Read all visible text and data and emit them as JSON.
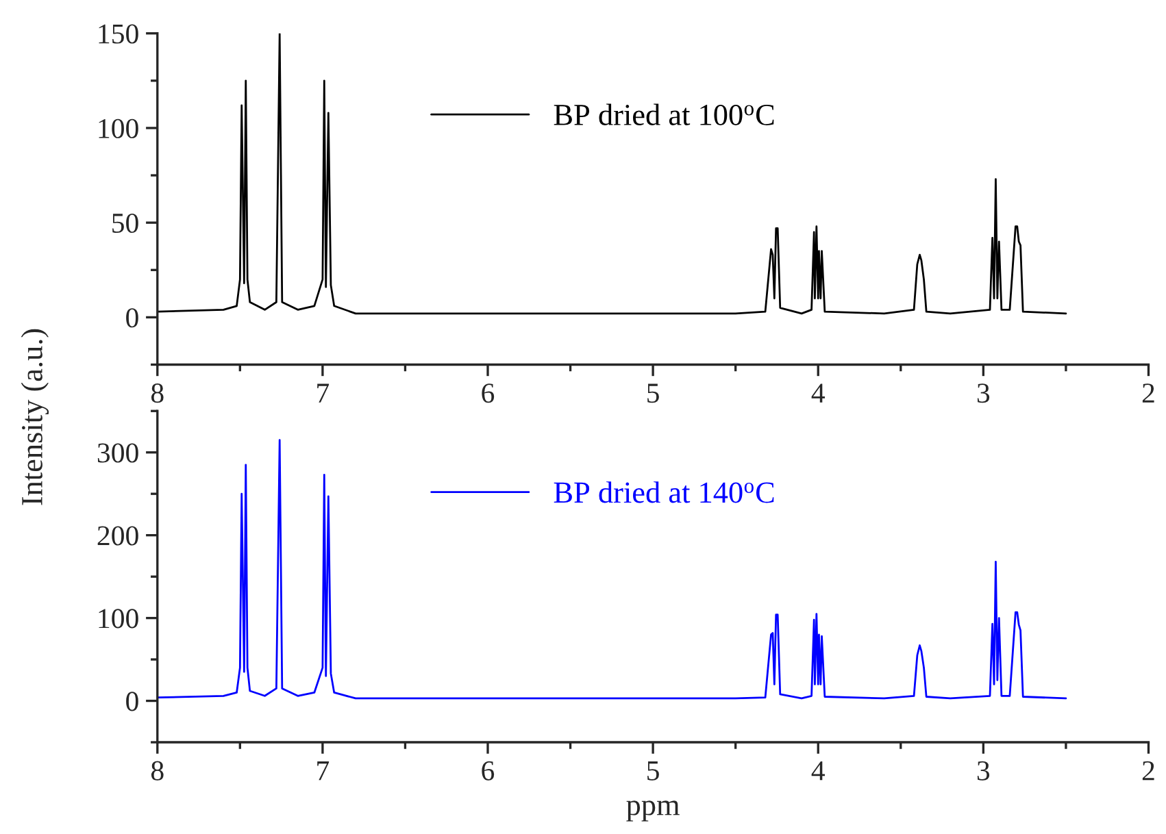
{
  "chart_data": [
    {
      "type": "line",
      "ylabel": "Intensity (a.u.)",
      "xlim": [
        8,
        2
      ],
      "ylim": [
        -25,
        150
      ],
      "xticks": [
        8,
        {
          "value": 7.5,
          "label": null
        },
        7,
        {
          "value": 6.5,
          "label": null
        },
        6,
        {
          "value": 5.5,
          "label": null
        },
        5,
        {
          "value": 4.5,
          "label": null
        },
        4,
        {
          "value": 3.5,
          "label": null
        },
        3,
        {
          "value": 2.5,
          "label": null
        },
        2
      ],
      "yticks": [
        {
          "value": -25,
          "label": null
        },
        0,
        {
          "value": 25,
          "label": null
        },
        50,
        {
          "value": 75,
          "label": null
        },
        100,
        {
          "value": 125,
          "label": null
        },
        150
      ],
      "legend": "top",
      "grid": false,
      "x": [
        8.0,
        7.6,
        7.52,
        7.5,
        7.49,
        7.475,
        7.465,
        7.455,
        7.44,
        7.35,
        7.28,
        7.26,
        7.245,
        7.15,
        7.05,
        7.0,
        6.99,
        6.98,
        6.965,
        6.95,
        6.93,
        6.8,
        6.5,
        6.0,
        5.5,
        5.0,
        4.5,
        4.32,
        4.285,
        4.275,
        4.265,
        4.255,
        4.245,
        4.23,
        4.1,
        4.04,
        4.025,
        4.02,
        4.01,
        4.0,
        3.995,
        3.985,
        3.978,
        3.96,
        3.6,
        3.42,
        3.4,
        3.385,
        3.375,
        3.36,
        3.345,
        3.2,
        2.96,
        2.945,
        2.935,
        2.925,
        2.915,
        2.905,
        2.89,
        2.84,
        2.805,
        2.795,
        2.785,
        2.775,
        2.76,
        2.5
      ],
      "series": [
        {
          "name": "BP dried at 100$^{o}$C",
          "color": "#000000",
          "values": [
            3,
            4,
            6,
            20,
            112,
            18,
            125,
            20,
            8,
            4,
            8,
            150,
            8,
            4,
            6,
            20,
            125,
            16,
            108,
            17,
            6,
            2,
            2,
            2,
            2,
            2,
            2,
            3,
            36,
            33,
            10,
            47,
            47,
            5,
            2,
            4,
            45,
            10,
            48,
            10,
            35,
            10,
            35,
            3,
            2,
            4,
            28,
            33,
            30,
            20,
            3,
            2,
            4,
            42,
            10,
            73,
            10,
            40,
            4,
            4,
            48,
            48,
            40,
            38,
            3,
            2
          ]
        }
      ]
    },
    {
      "type": "line",
      "xlabel": "ppm",
      "xlim": [
        8,
        2
      ],
      "ylim": [
        -50,
        350
      ],
      "xticks": [
        8,
        {
          "value": 7.5,
          "label": null
        },
        7,
        {
          "value": 6.5,
          "label": null
        },
        6,
        {
          "value": 5.5,
          "label": null
        },
        5,
        {
          "value": 4.5,
          "label": null
        },
        4,
        {
          "value": 3.5,
          "label": null
        },
        3,
        {
          "value": 2.5,
          "label": null
        },
        2
      ],
      "yticks": [
        {
          "value": -50,
          "label": null
        },
        0,
        {
          "value": 50,
          "label": null
        },
        100,
        {
          "value": 150,
          "label": null
        },
        200,
        {
          "value": 250,
          "label": null
        },
        300,
        {
          "value": 350,
          "label": null
        }
      ],
      "legend": "top",
      "grid": false,
      "x": [
        8.0,
        7.6,
        7.52,
        7.5,
        7.49,
        7.475,
        7.465,
        7.455,
        7.44,
        7.35,
        7.28,
        7.26,
        7.245,
        7.15,
        7.05,
        7.0,
        6.99,
        6.98,
        6.965,
        6.95,
        6.93,
        6.8,
        6.5,
        6.0,
        5.5,
        5.0,
        4.5,
        4.32,
        4.285,
        4.275,
        4.265,
        4.255,
        4.245,
        4.23,
        4.1,
        4.04,
        4.025,
        4.02,
        4.01,
        4.0,
        3.995,
        3.985,
        3.978,
        3.96,
        3.6,
        3.42,
        3.4,
        3.385,
        3.375,
        3.36,
        3.345,
        3.2,
        2.96,
        2.945,
        2.935,
        2.925,
        2.915,
        2.905,
        2.89,
        2.84,
        2.805,
        2.795,
        2.785,
        2.775,
        2.76,
        2.5
      ],
      "series": [
        {
          "name": "BP dried at 140$^{o}$C",
          "color": "#0000ff",
          "values": [
            4,
            6,
            10,
            40,
            250,
            35,
            285,
            40,
            12,
            6,
            15,
            315,
            15,
            6,
            10,
            40,
            273,
            30,
            247,
            33,
            10,
            3,
            3,
            3,
            3,
            3,
            3,
            4,
            80,
            82,
            20,
            104,
            104,
            8,
            3,
            6,
            98,
            20,
            105,
            20,
            80,
            20,
            78,
            5,
            3,
            6,
            55,
            67,
            60,
            40,
            5,
            3,
            6,
            93,
            20,
            168,
            25,
            100,
            6,
            6,
            107,
            107,
            92,
            85,
            5,
            3
          ]
        }
      ]
    }
  ]
}
